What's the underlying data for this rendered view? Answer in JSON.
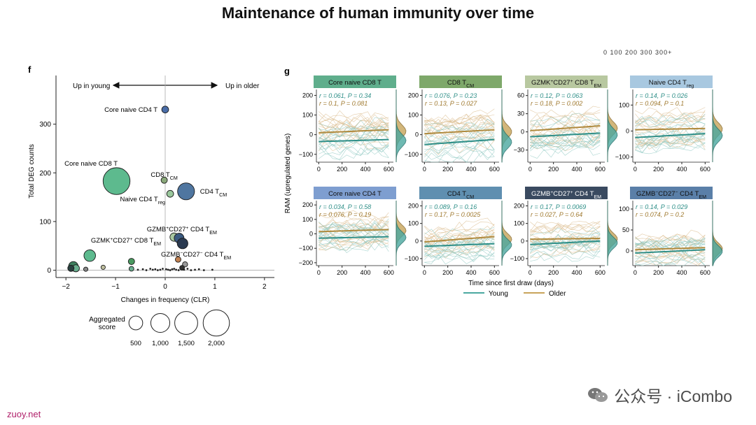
{
  "slide": {
    "title": "Maintenance of human immunity over time",
    "site_label": "zuoy.net",
    "watermark": "公众号 · iCombo",
    "top_fragment": "0   100   200   300 300+"
  },
  "panel_f": {
    "letter": "f",
    "arrow_left": "Up in young",
    "arrow_right": "Up in older",
    "size_legend_title": [
      "Aggregated",
      "score"
    ]
  },
  "panel_g": {
    "letter": "g",
    "shared_xlabel": "Time since first draw (days)",
    "shared_ylabel": "RAM (upregulated genes)",
    "legend": [
      {
        "name": "Young",
        "color": "#4aa8a0"
      },
      {
        "name": "Older",
        "color": "#c8a45a"
      }
    ]
  },
  "chart_data": [
    {
      "type": "scatter",
      "panel": "f",
      "title": "",
      "xlabel": "Changes in frequency (CLR)",
      "ylabel": "Total DEG counts",
      "xlim": [
        -2.2,
        2.2
      ],
      "ylim": [
        -15,
        400
      ],
      "xticks": [
        -2,
        -1,
        0,
        1,
        2
      ],
      "yticks": [
        0,
        100,
        200,
        300
      ],
      "size_legend": [
        500,
        1000,
        1500,
        2000
      ],
      "points": [
        {
          "x": 0.0,
          "y": 330,
          "score": 100,
          "color": "#4a6da8",
          "label": "Core naive CD4 T"
        },
        {
          "x": -0.98,
          "y": 183,
          "score": 2100,
          "color": "#5dba8e",
          "label": "Core naive CD8 T"
        },
        {
          "x": -0.02,
          "y": 185,
          "score": 80,
          "color": "#8aa87a",
          "label": "CD8 TCM"
        },
        {
          "x": 0.42,
          "y": 162,
          "score": 780,
          "color": "#4f76a0",
          "label": "CD4 TCM"
        },
        {
          "x": 0.1,
          "y": 157,
          "score": 100,
          "color": "#9ac89c",
          "label": "Naive CD4 Treg"
        },
        {
          "x": 0.18,
          "y": 68,
          "score": 160,
          "color": "#a8c8a0",
          "label": ""
        },
        {
          "x": 0.28,
          "y": 66,
          "score": 230,
          "color": "#3a5a80",
          "label": "GZMB+CD27+ CD4 TEM"
        },
        {
          "x": 0.35,
          "y": 55,
          "score": 280,
          "color": "#2a3a50",
          "label": ""
        },
        {
          "x": 0.26,
          "y": 22,
          "score": 60,
          "color": "#c08050",
          "label": "GZMB-CD27- CD4 TEM"
        },
        {
          "x": -1.52,
          "y": 30,
          "score": 340,
          "color": "#5dba8e",
          "label": "GZMK+CD27+ CD8 TEM"
        },
        {
          "x": -1.85,
          "y": 8,
          "score": 220,
          "color": "#3f8060",
          "label": ""
        },
        {
          "x": -1.8,
          "y": 4,
          "score": 110,
          "color": "#6ab090",
          "label": ""
        },
        {
          "x": -1.9,
          "y": 4,
          "score": 80,
          "color": "#2a4040",
          "label": ""
        },
        {
          "x": -1.6,
          "y": 2,
          "score": 30,
          "color": "#888888",
          "label": ""
        },
        {
          "x": -1.25,
          "y": 6,
          "score": 30,
          "color": "#bfbf9f",
          "label": ""
        },
        {
          "x": -0.68,
          "y": 18,
          "score": 80,
          "color": "#4a9a60",
          "label": ""
        },
        {
          "x": -0.68,
          "y": 3,
          "score": 40,
          "color": "#6ab090",
          "label": ""
        },
        {
          "x": 0.4,
          "y": 12,
          "score": 50,
          "color": "#999999",
          "label": ""
        },
        {
          "x": 0.34,
          "y": 5,
          "score": 40,
          "color": "#333333",
          "label": ""
        }
      ],
      "small_points_x": [
        -0.55,
        -0.45,
        -0.38,
        -0.3,
        -0.25,
        -0.2,
        -0.15,
        -0.1,
        -0.05,
        0.02,
        0.06,
        0.1,
        0.14,
        0.18,
        0.22,
        0.27,
        0.32,
        0.38,
        0.45,
        0.52,
        0.6,
        0.68,
        0.78,
        0.95
      ],
      "small_points_y": [
        1,
        2,
        0,
        3,
        1,
        2,
        0,
        1,
        3,
        2,
        1,
        0,
        2,
        3,
        1,
        0,
        2,
        1,
        3,
        0,
        1,
        2,
        0,
        1
      ]
    },
    {
      "type": "line",
      "panel": "g",
      "facets": [
        {
          "title": "Core naive CD8 T",
          "header_color": "#5fae8c",
          "stats_young": "r = 0.061, P = 0.34",
          "stats_older": "r = 0.1, P = 0.081",
          "yticks": [
            -100,
            0,
            100,
            200
          ],
          "ylim": [
            -140,
            230
          ],
          "young_fit": [
            -35,
            -25
          ],
          "older_fit": [
            10,
            25
          ]
        },
        {
          "title": "CD8 TCM",
          "header_color": "#7ea86a",
          "stats_young": "r = 0.076, P = 0.23",
          "stats_older": "r = 0.13, P = 0.027",
          "yticks": [
            -100,
            0,
            100,
            200
          ],
          "ylim": [
            -140,
            230
          ],
          "young_fit": [
            -50,
            -25
          ],
          "older_fit": [
            5,
            25
          ]
        },
        {
          "title": "GZMK+CD27+ CD8 TEM",
          "header_color": "#b8c8a0",
          "stats_young": "r = 0.12, P = 0.063",
          "stats_older": "r = 0.18, P = 0.002",
          "yticks": [
            -30,
            0,
            30,
            60
          ],
          "ylim": [
            -50,
            70
          ],
          "young_fit": [
            -8,
            -2
          ],
          "older_fit": [
            2,
            10
          ]
        },
        {
          "title": "Naive CD4 Treg",
          "header_color": "#a8c8e0",
          "stats_young": "r = 0.14, P = 0.026",
          "stats_older": "r = 0.094, P = 0.1",
          "yticks": [
            -100,
            0,
            100
          ],
          "ylim": [
            -120,
            160
          ],
          "young_fit": [
            -25,
            -10
          ],
          "older_fit": [
            5,
            10
          ]
        },
        {
          "title": "Core naive CD4 T",
          "header_color": "#7e9ed0",
          "stats_young": "r = 0.034, P = 0.58",
          "stats_older": "r = 0.076, P = 0.19",
          "yticks": [
            -200,
            -100,
            0,
            100,
            200
          ],
          "ylim": [
            -220,
            230
          ],
          "young_fit": [
            -30,
            -20
          ],
          "older_fit": [
            15,
            30
          ]
        },
        {
          "title": "CD4 TCM",
          "header_color": "#5f8fb0",
          "stats_young": "r = 0.089, P = 0.16",
          "stats_older": "r = 0.17, P = 0.0025",
          "yticks": [
            -100,
            0,
            100,
            200
          ],
          "ylim": [
            -140,
            230
          ],
          "young_fit": [
            -30,
            -15
          ],
          "older_fit": [
            -5,
            25
          ]
        },
        {
          "title": "GZMB+CD27+ CD4 TEM",
          "header_color": "#3a4a60",
          "stats_young": "r = 0.17, P = 0.0069",
          "stats_older": "r = 0.027, P = 0.64",
          "yticks": [
            -100,
            0,
            100,
            200
          ],
          "ylim": [
            -140,
            230
          ],
          "young_fit": [
            -20,
            0
          ],
          "older_fit": [
            10,
            15
          ]
        },
        {
          "title": "GZMB-CD27- CD4 TEM",
          "header_color": "#5a7fa8",
          "stats_young": "r = 0.14, P = 0.029",
          "stats_older": "r = 0.074, P = 0.2",
          "yticks": [
            0,
            50,
            100
          ],
          "ylim": [
            -35,
            120
          ],
          "young_fit": [
            -5,
            3
          ],
          "older_fit": [
            3,
            8
          ]
        }
      ],
      "xticks": [
        0,
        200,
        400,
        600
      ],
      "xlim": [
        -20,
        640
      ]
    }
  ]
}
